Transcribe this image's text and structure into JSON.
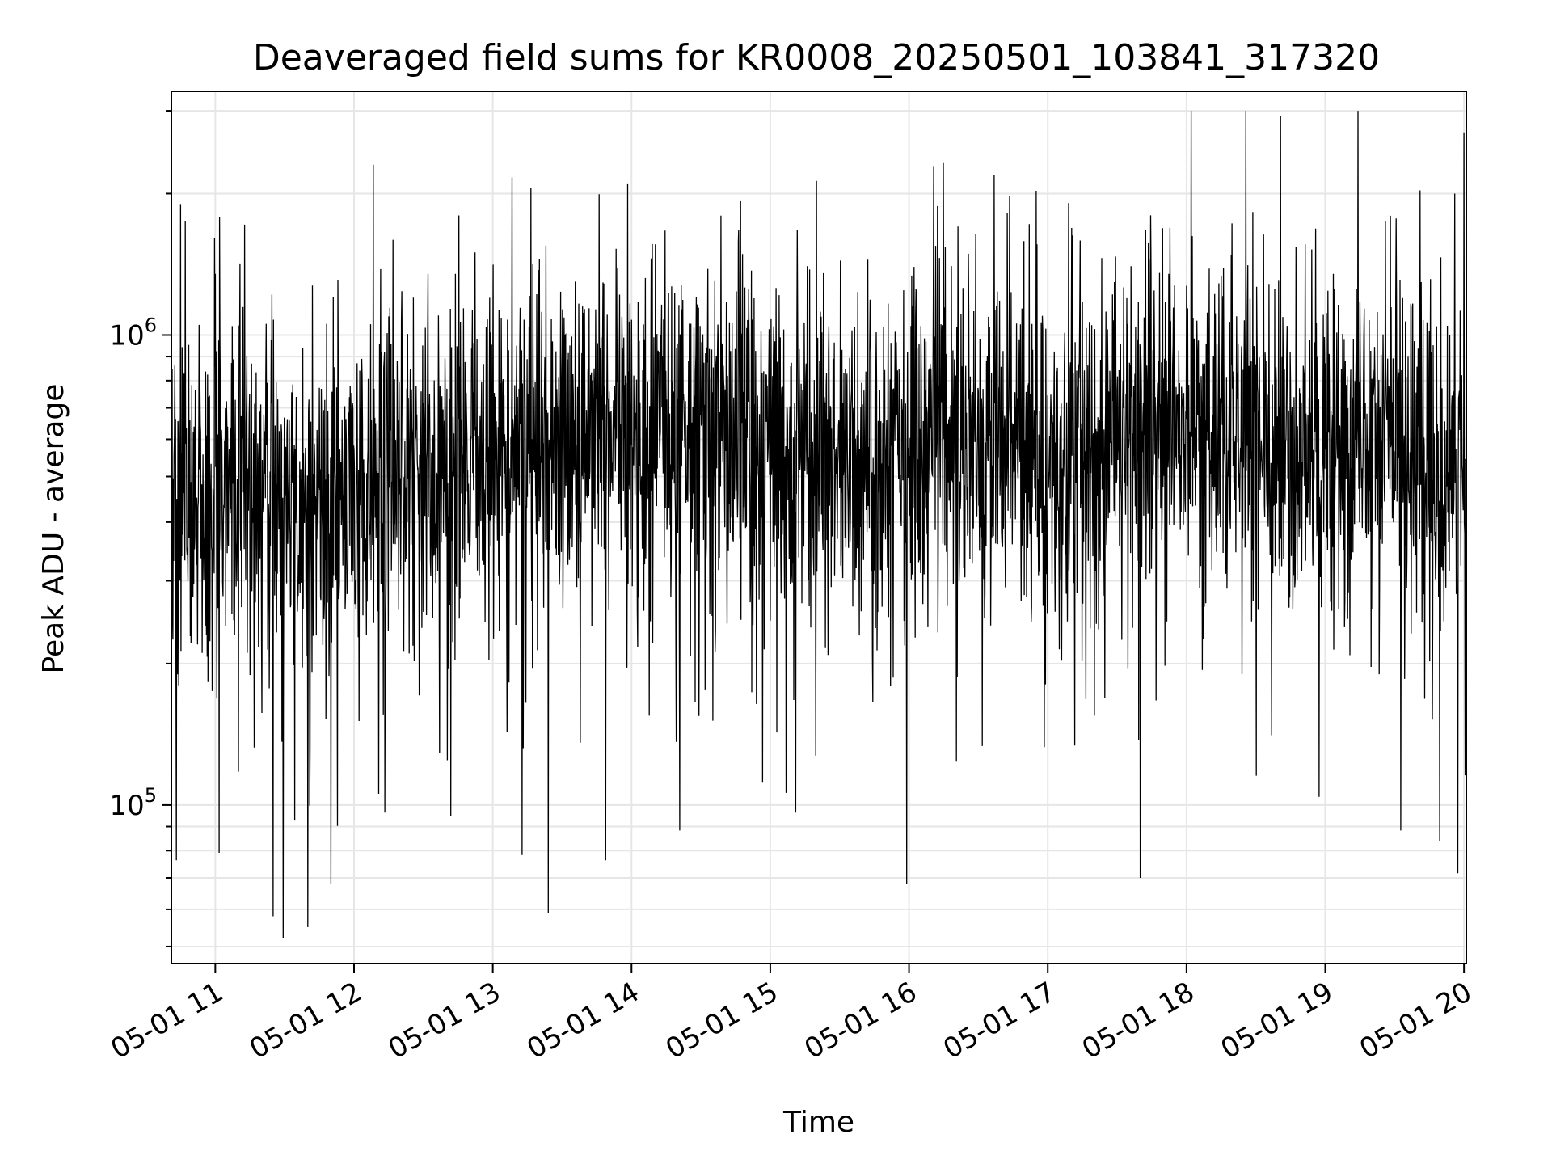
{
  "chart_data": {
    "type": "line",
    "title": "Deaveraged field sums for KR0008_20250501_103841_317320",
    "xlabel": "Time",
    "ylabel": "Peak ADU - average",
    "yscale": "log",
    "grid": true,
    "line_color": "#000000",
    "grid_color": "#e6e6e6",
    "xlim": [
      "2025-05-01 10:41",
      "2025-05-01 20:01"
    ],
    "ylim": [
      46000,
      3300000
    ],
    "x_ticks": [
      {
        "value": "2025-05-01 11:00",
        "label": "05-01 11"
      },
      {
        "value": "2025-05-01 12:00",
        "label": "05-01 12"
      },
      {
        "value": "2025-05-01 13:00",
        "label": "05-01 13"
      },
      {
        "value": "2025-05-01 14:00",
        "label": "05-01 14"
      },
      {
        "value": "2025-05-01 15:00",
        "label": "05-01 15"
      },
      {
        "value": "2025-05-01 16:00",
        "label": "05-01 16"
      },
      {
        "value": "2025-05-01 17:00",
        "label": "05-01 17"
      },
      {
        "value": "2025-05-01 18:00",
        "label": "05-01 18"
      },
      {
        "value": "2025-05-01 19:00",
        "label": "05-01 19"
      },
      {
        "value": "2025-05-01 20:00",
        "label": "05-01 20"
      }
    ],
    "y_ticks": [
      {
        "value": 100000,
        "base": "10",
        "exp": "5"
      },
      {
        "value": 1000000,
        "base": "10",
        "exp": "6"
      }
    ],
    "series": [
      {
        "sample_interval_seconds": 10,
        "baseline": [
          {
            "x": "2025-05-01 10:41",
            "y": 470000
          },
          {
            "x": "2025-05-01 11:15",
            "y": 470000
          },
          {
            "x": "2025-05-01 11:45",
            "y": 420000
          },
          {
            "x": "2025-05-01 12:15",
            "y": 500000
          },
          {
            "x": "2025-05-01 12:45",
            "y": 540000
          },
          {
            "x": "2025-05-01 13:30",
            "y": 580000
          },
          {
            "x": "2025-05-01 14:15",
            "y": 640000
          },
          {
            "x": "2025-05-01 15:00",
            "y": 590000
          },
          {
            "x": "2025-05-01 16:00",
            "y": 590000
          },
          {
            "x": "2025-05-01 17:00",
            "y": 550000
          },
          {
            "x": "2025-05-01 18:00",
            "y": 620000
          },
          {
            "x": "2025-05-01 19:00",
            "y": 580000
          },
          {
            "x": "2025-05-01 19:40",
            "y": 600000
          },
          {
            "x": "2025-05-01 19:50",
            "y": 420000
          },
          {
            "x": "2025-05-01 20:01",
            "y": 560000
          }
        ],
        "notable_points": [
          {
            "x": "2025-05-01 10:45",
            "y": 1900000
          },
          {
            "x": "2025-05-01 10:47",
            "y": 1750000
          },
          {
            "x": "2025-05-01 11:00",
            "y": 1350000
          },
          {
            "x": "2025-05-01 11:25",
            "y": 58000
          },
          {
            "x": "2025-05-01 11:40",
            "y": 55000
          },
          {
            "x": "2025-05-01 11:50",
            "y": 68000
          },
          {
            "x": "2025-05-01 13:23",
            "y": 1550000
          },
          {
            "x": "2025-05-01 13:24",
            "y": 59000
          },
          {
            "x": "2025-05-01 15:59",
            "y": 68000
          },
          {
            "x": "2025-05-01 17:40",
            "y": 70000
          },
          {
            "x": "2025-05-01 19:26",
            "y": 1750000
          },
          {
            "x": "2025-05-01 19:56",
            "y": 2000000
          },
          {
            "x": "2025-05-01 20:00",
            "y": 2700000
          }
        ]
      }
    ]
  }
}
